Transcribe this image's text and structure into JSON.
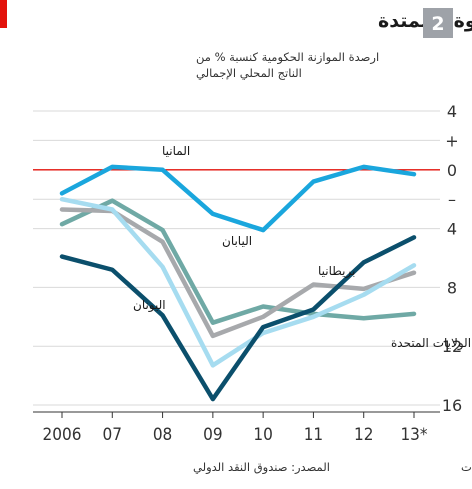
{
  "chart_number": "2",
  "accent_color": "#e3120b",
  "chart_data": {
    "type": "line",
    "title": "سنة الفجوة الممتدة",
    "subtitle_lines": [
      "ارصدة الموازنة الحكومية كنسبة % من",
      "الناتج المحلي الإجمالي"
    ],
    "x": [
      2006,
      2007,
      2008,
      2009,
      2010,
      2011,
      2012,
      2013
    ],
    "x_tick_labels": [
      "2006",
      "07",
      "08",
      "09",
      "10",
      "11",
      "12",
      "13*"
    ],
    "y_ticks": [
      {
        "value": 4,
        "label": "4"
      },
      {
        "value": 2,
        "label": "+"
      },
      {
        "value": 0,
        "label": "0"
      },
      {
        "value": -2,
        "label": "–"
      },
      {
        "value": -4,
        "label": "4"
      },
      {
        "value": -8,
        "label": "8"
      },
      {
        "value": -12,
        "label": "12"
      },
      {
        "value": -16,
        "label": "16"
      }
    ],
    "ylim": [
      -16,
      4
    ],
    "zero_line_color": "#e3120b",
    "grid": true,
    "series": [
      {
        "name": "المانيا",
        "color": "#1aa6dd",
        "values": [
          -1.6,
          0.2,
          0.0,
          -3.0,
          -4.1,
          -0.8,
          0.2,
          -0.3
        ]
      },
      {
        "name": "اليابان",
        "color": "#6fa9a5",
        "values": [
          -3.7,
          -2.1,
          -4.1,
          -10.4,
          -9.3,
          -9.8,
          -10.1,
          -9.8
        ]
      },
      {
        "name": "بريطانيا",
        "color": "#a7a9ac",
        "values": [
          -2.7,
          -2.8,
          -4.9,
          -11.3,
          -10.0,
          -7.8,
          -8.1,
          -7.0
        ]
      },
      {
        "name": "الولايات المتحدة",
        "color": "#a6dcf0",
        "values": [
          -2.0,
          -2.7,
          -6.6,
          -13.3,
          -11.1,
          -10.0,
          -8.5,
          -6.5
        ]
      },
      {
        "name": "اليونان",
        "color": "#0b4f6c",
        "values": [
          -5.9,
          -6.8,
          -9.9,
          -15.6,
          -10.7,
          -9.5,
          -6.3,
          -4.6
        ]
      }
    ]
  },
  "footer": {
    "source": "المصدر: صندوق النقد الدولي",
    "note": "* توقعات"
  }
}
